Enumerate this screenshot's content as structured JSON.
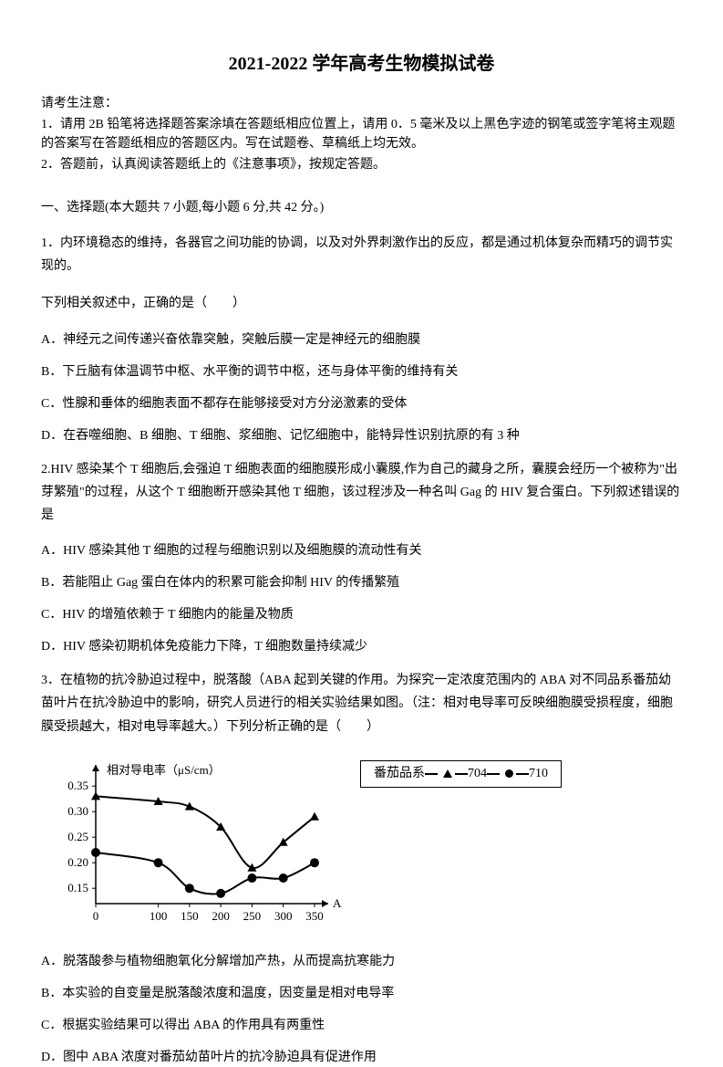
{
  "title": "2021-2022 学年高考生物模拟试卷",
  "instructions": {
    "header": "请考生注意：",
    "line1": "1．请用 2B 铅笔将选择题答案涂填在答题纸相应位置上，请用 0．5 毫米及以上黑色字迹的钢笔或签字笔将主观题的答案写在答题纸相应的答题区内。写在试题卷、草稿纸上均无效。",
    "line2": "2．答题前，认真阅读答题纸上的《注意事项》，按规定答题。"
  },
  "section1": {
    "header": "一、选择题(本大题共 7 小题,每小题 6 分,共 42 分。)"
  },
  "q1": {
    "stem1": "1．内环境稳态的维持，各器官之间功能的协调，以及对外界刺激作出的反应，都是通过机体复杂而精巧的调节实现的。",
    "stem2": "下列相关叙述中，正确的是（　　）",
    "optA": "A．神经元之间传递兴奋依靠突触，突触后膜一定是神经元的细胞膜",
    "optB": "B．下丘脑有体温调节中枢、水平衡的调节中枢，还与身体平衡的维持有关",
    "optC": "C．性腺和垂体的细胞表面不都存在能够接受对方分泌激素的受体",
    "optD": "D．在吞噬细胞、B 细胞、T 细胞、浆细胞、记忆细胞中，能特异性识别抗原的有 3 种"
  },
  "q2": {
    "stem": "2.HIV 感染某个 T 细胞后,会强迫 T 细胞表面的细胞膜形成小囊膜,作为自己的藏身之所，囊膜会经历一个被称为\"出芽繁殖\"的过程，从这个 T 细胞断开感染其他 T 细胞，该过程涉及一种名叫 Gag 的 HIV 复合蛋白。下列叙述错误的是",
    "optA": "A．HIV 感染其他 T 细胞的过程与细胞识别以及细胞膜的流动性有关",
    "optB": "B．若能阻止 Gag 蛋白在体内的积累可能会抑制 HIV 的传播繁殖",
    "optC": "C．HIV 的增殖依赖于 T 细胞内的能量及物质",
    "optD": "D．HIV 感染初期机体免疫能力下降，T 细胞数量持续减少"
  },
  "q3": {
    "stem": "3．在植物的抗冷胁迫过程中，脱落酸（ABA 起到关键的作用。为探究一定浓度范围内的 ABA 对不同品系番茄幼苗叶片在抗冷胁迫中的影响，研究人员进行的相关实验结果如图。（注：相对电导率可反映细胞膜受损程度，细胞膜受损越大，相对电导率越大。）下列分析正确的是（　　）",
    "optA": "A．脱落酸参与植物细胞氧化分解增加产热，从而提高抗寒能力",
    "optB": "B．本实验的自变量是脱落酸浓度和温度，因变量是相对电导率",
    "optC": "C．根据实验结果可以得出 ABA 的作用具有两重性",
    "optD": "D．图中 ABA 浓度对番茄幼苗叶片的抗冷胁迫具有促进作用"
  },
  "chart": {
    "type": "line",
    "y_label": "相对导电率（μS/cm）",
    "x_label": "ABA浓度（mg/L）",
    "x_ticks": [
      0,
      100,
      150,
      200,
      250,
      300,
      350
    ],
    "y_ticks": [
      0.15,
      0.2,
      0.25,
      0.3,
      0.35
    ],
    "ylim": [
      0.12,
      0.37
    ],
    "series_704": {
      "marker": "triangle",
      "color": "#000000",
      "x": [
        0,
        100,
        150,
        200,
        250,
        300,
        350
      ],
      "y": [
        0.33,
        0.32,
        0.31,
        0.27,
        0.19,
        0.24,
        0.29
      ]
    },
    "series_710": {
      "marker": "circle",
      "color": "#000000",
      "x": [
        0,
        100,
        150,
        200,
        250,
        300,
        350
      ],
      "y": [
        0.22,
        0.2,
        0.15,
        0.14,
        0.17,
        0.17,
        0.2
      ]
    },
    "legend": {
      "label": "番茄品系",
      "s1": "704",
      "s2": "710"
    },
    "background_color": "#ffffff",
    "axis_color": "#000000",
    "line_width": 2,
    "marker_size": 5
  }
}
